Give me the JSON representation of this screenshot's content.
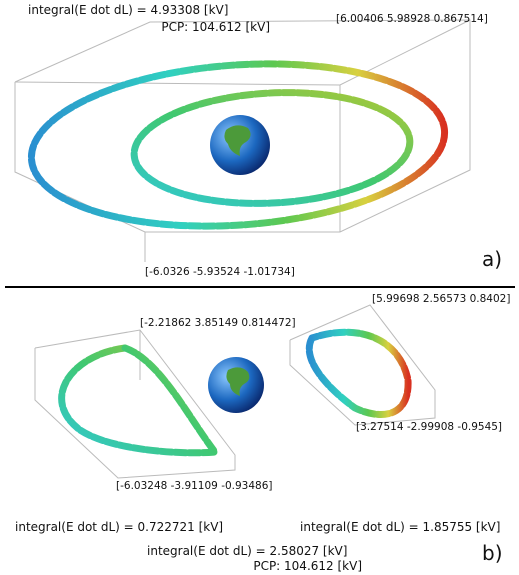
{
  "panel_a": {
    "integral": "integral(E dot dL) = 4.93308 [kV]",
    "pcp": "PCP: 104.612 [kV]",
    "corner_max": "[6.00406 5.98928 0.867514]",
    "corner_min": "[-6.0326 -5.93524 -1.01734]",
    "label": "a)"
  },
  "panel_b": {
    "corner_left_max": "[-2.21862 3.85149 0.814472]",
    "corner_left_min": "[-6.03248 -3.91109 -0.93486]",
    "corner_right_max": "[5.99698 2.56573 0.8402]",
    "corner_right_min": "[3.27514 -2.99908 -0.9545]",
    "integral_left": "integral(E dot dL) = 0.722721 [kV]",
    "integral_right": "integral(E dot dL) = 1.85755 [kV]",
    "integral_total": "integral(E dot dL) = 2.58027 [kV]",
    "pcp": "PCP: 104.612 [kV]",
    "label": "b)"
  }
}
